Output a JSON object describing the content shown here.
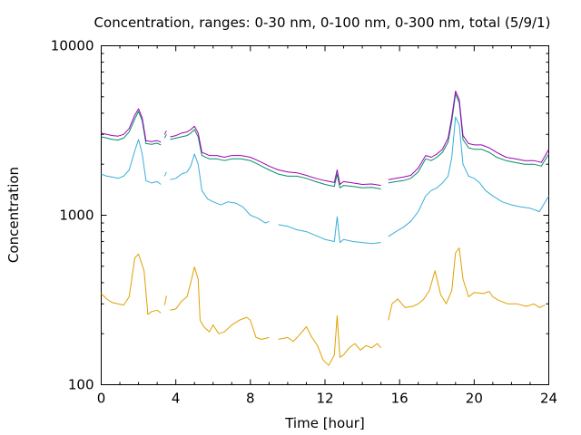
{
  "chart_data": {
    "type": "line",
    "title": "Concentration, ranges: 0-30 nm, 0-100 nm, 0-300 nm, total (5/9/1)",
    "xlabel": "Time [hour]",
    "ylabel": "Concentration",
    "xlim": [
      0,
      24
    ],
    "ylim": [
      100,
      10000
    ],
    "yscale": "log",
    "xticks": [
      0,
      4,
      8,
      12,
      16,
      20,
      24
    ],
    "xtick_labels": [
      "0",
      "4",
      "8",
      "12",
      "16",
      "20",
      "24"
    ],
    "yticks": [
      100,
      1000,
      10000
    ],
    "ytick_labels": [
      "100",
      "1000",
      "10000"
    ],
    "grid": false,
    "legend": "none",
    "series": [
      {
        "color": "#e0a000",
        "points": [
          [
            0,
            345
          ],
          [
            0.3,
            320
          ],
          [
            0.6,
            305
          ],
          [
            0.9,
            300
          ],
          [
            1.2,
            295
          ],
          [
            1.5,
            330
          ],
          [
            1.8,
            560
          ],
          [
            2.0,
            590
          ],
          [
            2.3,
            470
          ],
          [
            2.5,
            260
          ],
          [
            2.7,
            270
          ],
          [
            3.0,
            275
          ],
          [
            3.2,
            265
          ],
          [
            3.3,
            null
          ],
          [
            3.4,
            295
          ],
          [
            3.5,
            335
          ],
          [
            3.6,
            null
          ],
          [
            3.7,
            275
          ],
          [
            4.0,
            280
          ],
          [
            4.3,
            310
          ],
          [
            4.6,
            330
          ],
          [
            4.8,
            400
          ],
          [
            5.0,
            495
          ],
          [
            5.2,
            420
          ],
          [
            5.3,
            240
          ],
          [
            5.5,
            220
          ],
          [
            5.8,
            205
          ],
          [
            6.0,
            225
          ],
          [
            6.3,
            200
          ],
          [
            6.6,
            205
          ],
          [
            7.0,
            225
          ],
          [
            7.4,
            240
          ],
          [
            7.8,
            250
          ],
          [
            8.0,
            240
          ],
          [
            8.3,
            190
          ],
          [
            8.6,
            185
          ],
          [
            9.0,
            190
          ],
          [
            9.3,
            null
          ],
          [
            9.5,
            185
          ],
          [
            10.0,
            190
          ],
          [
            10.3,
            180
          ],
          [
            10.6,
            195
          ],
          [
            11.0,
            220
          ],
          [
            11.3,
            190
          ],
          [
            11.6,
            170
          ],
          [
            11.9,
            140
          ],
          [
            12.2,
            130
          ],
          [
            12.5,
            150
          ],
          [
            12.65,
            255
          ],
          [
            12.8,
            145
          ],
          [
            13.0,
            150
          ],
          [
            13.3,
            165
          ],
          [
            13.6,
            175
          ],
          [
            13.9,
            160
          ],
          [
            14.2,
            170
          ],
          [
            14.5,
            165
          ],
          [
            14.8,
            175
          ],
          [
            15.0,
            165
          ],
          [
            15.2,
            null
          ],
          [
            15.4,
            240
          ],
          [
            15.6,
            300
          ],
          [
            15.9,
            320
          ],
          [
            16.3,
            285
          ],
          [
            16.7,
            290
          ],
          [
            17.0,
            300
          ],
          [
            17.3,
            320
          ],
          [
            17.6,
            360
          ],
          [
            17.9,
            470
          ],
          [
            18.2,
            340
          ],
          [
            18.5,
            300
          ],
          [
            18.8,
            360
          ],
          [
            19.0,
            600
          ],
          [
            19.2,
            640
          ],
          [
            19.4,
            420
          ],
          [
            19.7,
            330
          ],
          [
            20.0,
            350
          ],
          [
            20.5,
            345
          ],
          [
            20.8,
            355
          ],
          [
            21.0,
            330
          ],
          [
            21.3,
            315
          ],
          [
            21.8,
            300
          ],
          [
            22.3,
            300
          ],
          [
            22.8,
            290
          ],
          [
            23.2,
            300
          ],
          [
            23.5,
            285
          ],
          [
            23.8,
            295
          ]
        ]
      },
      {
        "color": "#3aaed8",
        "points": [
          [
            0,
            1750
          ],
          [
            0.3,
            1700
          ],
          [
            0.6,
            1680
          ],
          [
            0.9,
            1650
          ],
          [
            1.2,
            1700
          ],
          [
            1.5,
            1850
          ],
          [
            1.8,
            2400
          ],
          [
            2.0,
            2800
          ],
          [
            2.2,
            2300
          ],
          [
            2.4,
            1600
          ],
          [
            2.7,
            1550
          ],
          [
            3.0,
            1580
          ],
          [
            3.2,
            1520
          ],
          [
            3.3,
            null
          ],
          [
            3.4,
            1700
          ],
          [
            3.5,
            1800
          ],
          [
            3.6,
            null
          ],
          [
            3.7,
            1620
          ],
          [
            4.0,
            1650
          ],
          [
            4.3,
            1750
          ],
          [
            4.6,
            1800
          ],
          [
            4.8,
            1950
          ],
          [
            5.0,
            2300
          ],
          [
            5.2,
            2000
          ],
          [
            5.4,
            1400
          ],
          [
            5.7,
            1250
          ],
          [
            6.0,
            1200
          ],
          [
            6.4,
            1150
          ],
          [
            6.8,
            1200
          ],
          [
            7.2,
            1180
          ],
          [
            7.6,
            1120
          ],
          [
            8.0,
            1000
          ],
          [
            8.4,
            960
          ],
          [
            8.8,
            900
          ],
          [
            9.0,
            920
          ],
          [
            9.3,
            null
          ],
          [
            9.5,
            880
          ],
          [
            10.0,
            860
          ],
          [
            10.5,
            820
          ],
          [
            11.0,
            800
          ],
          [
            11.5,
            760
          ],
          [
            12.0,
            720
          ],
          [
            12.5,
            700
          ],
          [
            12.65,
            980
          ],
          [
            12.8,
            690
          ],
          [
            13.0,
            720
          ],
          [
            13.5,
            700
          ],
          [
            14.0,
            690
          ],
          [
            14.5,
            680
          ],
          [
            15.0,
            690
          ],
          [
            15.2,
            null
          ],
          [
            15.4,
            750
          ],
          [
            15.8,
            800
          ],
          [
            16.2,
            850
          ],
          [
            16.6,
            920
          ],
          [
            17.0,
            1050
          ],
          [
            17.4,
            1300
          ],
          [
            17.7,
            1400
          ],
          [
            18.0,
            1450
          ],
          [
            18.3,
            1550
          ],
          [
            18.6,
            1700
          ],
          [
            18.8,
            2200
          ],
          [
            19.0,
            3800
          ],
          [
            19.2,
            3400
          ],
          [
            19.4,
            2000
          ],
          [
            19.7,
            1700
          ],
          [
            20.0,
            1650
          ],
          [
            20.3,
            1550
          ],
          [
            20.6,
            1400
          ],
          [
            21.0,
            1300
          ],
          [
            21.5,
            1200
          ],
          [
            22.0,
            1150
          ],
          [
            22.5,
            1120
          ],
          [
            23.0,
            1100
          ],
          [
            23.5,
            1050
          ],
          [
            24.0,
            1300
          ]
        ]
      },
      {
        "color": "#009060",
        "points": [
          [
            0,
            2900
          ],
          [
            0.3,
            2850
          ],
          [
            0.6,
            2800
          ],
          [
            0.9,
            2780
          ],
          [
            1.2,
            2850
          ],
          [
            1.5,
            3100
          ],
          [
            1.8,
            3700
          ],
          [
            2.0,
            4100
          ],
          [
            2.2,
            3600
          ],
          [
            2.4,
            2650
          ],
          [
            2.7,
            2620
          ],
          [
            3.0,
            2660
          ],
          [
            3.2,
            2600
          ],
          [
            3.3,
            null
          ],
          [
            3.4,
            2850
          ],
          [
            3.5,
            3000
          ],
          [
            3.6,
            null
          ],
          [
            3.7,
            2800
          ],
          [
            4.0,
            2850
          ],
          [
            4.3,
            2900
          ],
          [
            4.6,
            2950
          ],
          [
            4.8,
            3050
          ],
          [
            5.0,
            3200
          ],
          [
            5.2,
            2900
          ],
          [
            5.4,
            2250
          ],
          [
            5.8,
            2150
          ],
          [
            6.2,
            2150
          ],
          [
            6.6,
            2100
          ],
          [
            7.0,
            2150
          ],
          [
            7.5,
            2150
          ],
          [
            8.0,
            2100
          ],
          [
            8.4,
            2000
          ],
          [
            8.8,
            1900
          ],
          [
            9.0,
            1850
          ],
          [
            9.5,
            1750
          ],
          [
            10.0,
            1700
          ],
          [
            10.5,
            1700
          ],
          [
            11.0,
            1650
          ],
          [
            11.5,
            1580
          ],
          [
            12.0,
            1520
          ],
          [
            12.5,
            1480
          ],
          [
            12.65,
            1750
          ],
          [
            12.8,
            1450
          ],
          [
            13.0,
            1500
          ],
          [
            13.5,
            1480
          ],
          [
            14.0,
            1450
          ],
          [
            14.5,
            1460
          ],
          [
            15.0,
            1430
          ],
          [
            15.2,
            null
          ],
          [
            15.4,
            1550
          ],
          [
            15.8,
            1580
          ],
          [
            16.2,
            1600
          ],
          [
            16.6,
            1650
          ],
          [
            17.0,
            1800
          ],
          [
            17.4,
            2150
          ],
          [
            17.7,
            2100
          ],
          [
            18.0,
            2200
          ],
          [
            18.3,
            2350
          ],
          [
            18.6,
            2700
          ],
          [
            18.8,
            3600
          ],
          [
            19.0,
            5200
          ],
          [
            19.2,
            4600
          ],
          [
            19.4,
            2800
          ],
          [
            19.7,
            2500
          ],
          [
            20.0,
            2450
          ],
          [
            20.4,
            2450
          ],
          [
            20.8,
            2350
          ],
          [
            21.2,
            2200
          ],
          [
            21.7,
            2100
          ],
          [
            22.2,
            2050
          ],
          [
            22.7,
            2000
          ],
          [
            23.2,
            2000
          ],
          [
            23.6,
            1950
          ],
          [
            24.0,
            2300
          ]
        ]
      },
      {
        "color": "#a000b8",
        "points": [
          [
            0,
            3050
          ],
          [
            0.3,
            3000
          ],
          [
            0.6,
            2950
          ],
          [
            0.9,
            2930
          ],
          [
            1.2,
            3000
          ],
          [
            1.5,
            3250
          ],
          [
            1.8,
            3900
          ],
          [
            2.0,
            4250
          ],
          [
            2.2,
            3750
          ],
          [
            2.4,
            2750
          ],
          [
            2.7,
            2720
          ],
          [
            3.0,
            2760
          ],
          [
            3.2,
            2700
          ],
          [
            3.3,
            null
          ],
          [
            3.4,
            3000
          ],
          [
            3.5,
            3150
          ],
          [
            3.6,
            null
          ],
          [
            3.7,
            2900
          ],
          [
            4.0,
            2950
          ],
          [
            4.3,
            3050
          ],
          [
            4.6,
            3100
          ],
          [
            4.8,
            3200
          ],
          [
            5.0,
            3350
          ],
          [
            5.2,
            3050
          ],
          [
            5.4,
            2350
          ],
          [
            5.8,
            2250
          ],
          [
            6.2,
            2250
          ],
          [
            6.6,
            2200
          ],
          [
            7.0,
            2250
          ],
          [
            7.5,
            2250
          ],
          [
            8.0,
            2200
          ],
          [
            8.4,
            2100
          ],
          [
            8.8,
            2000
          ],
          [
            9.0,
            1950
          ],
          [
            9.5,
            1850
          ],
          [
            10.0,
            1800
          ],
          [
            10.5,
            1780
          ],
          [
            11.0,
            1720
          ],
          [
            11.5,
            1650
          ],
          [
            12.0,
            1600
          ],
          [
            12.5,
            1560
          ],
          [
            12.65,
            1850
          ],
          [
            12.8,
            1520
          ],
          [
            13.0,
            1580
          ],
          [
            13.5,
            1550
          ],
          [
            14.0,
            1520
          ],
          [
            14.5,
            1530
          ],
          [
            15.0,
            1500
          ],
          [
            15.2,
            null
          ],
          [
            15.4,
            1620
          ],
          [
            15.8,
            1650
          ],
          [
            16.2,
            1680
          ],
          [
            16.6,
            1720
          ],
          [
            17.0,
            1900
          ],
          [
            17.4,
            2250
          ],
          [
            17.7,
            2200
          ],
          [
            18.0,
            2300
          ],
          [
            18.3,
            2450
          ],
          [
            18.6,
            2850
          ],
          [
            18.8,
            3800
          ],
          [
            19.0,
            5400
          ],
          [
            19.2,
            4800
          ],
          [
            19.4,
            2950
          ],
          [
            19.7,
            2650
          ],
          [
            20.0,
            2600
          ],
          [
            20.4,
            2600
          ],
          [
            20.8,
            2500
          ],
          [
            21.2,
            2350
          ],
          [
            21.7,
            2200
          ],
          [
            22.2,
            2150
          ],
          [
            22.7,
            2100
          ],
          [
            23.2,
            2100
          ],
          [
            23.6,
            2050
          ],
          [
            24.0,
            2450
          ]
        ]
      }
    ]
  }
}
